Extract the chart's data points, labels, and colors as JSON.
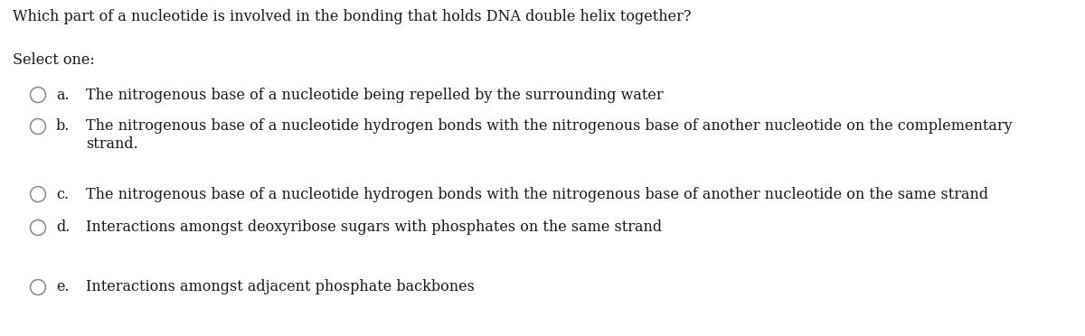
{
  "background_color": "#ffffff",
  "title": "Which part of a nucleotide is involved in the bonding that holds DNA double helix together?",
  "select_one": "Select one:",
  "options": [
    {
      "letter": "a.",
      "text": "The nitrogenous base of a nucleotide being repelled by the surrounding water",
      "line2": null
    },
    {
      "letter": "b.",
      "text": "The nitrogenous base of a nucleotide hydrogen bonds with the nitrogenous base of another nucleotide on the complementary",
      "line2": "strand."
    },
    {
      "letter": "c.",
      "text": "The nitrogenous base of a nucleotide hydrogen bonds with the nitrogenous base of another nucleotide on the same strand",
      "line2": null
    },
    {
      "letter": "d.",
      "text": "Interactions amongst deoxyribose sugars with phosphates on the same strand",
      "line2": null
    },
    {
      "letter": "e.",
      "text": "Interactions amongst adjacent phosphate backbones",
      "line2": null
    }
  ],
  "title_fontsize": 11.5,
  "select_fontsize": 11.5,
  "option_fontsize": 11.5,
  "text_color": "#1a1a1a",
  "circle_color": "#888888",
  "fig_width": 12.0,
  "fig_height": 3.72
}
